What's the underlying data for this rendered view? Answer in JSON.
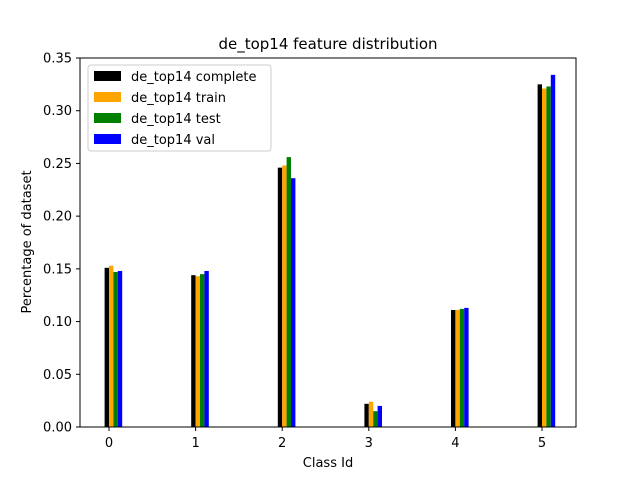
{
  "chart_data": {
    "type": "bar",
    "title": "de_top14 feature distribution",
    "xlabel": "Class Id",
    "ylabel": "Percentage of dataset",
    "categories": [
      "0",
      "1",
      "2",
      "3",
      "4",
      "5"
    ],
    "ylim": [
      0,
      0.35
    ],
    "yticks": [
      "0.00",
      "0.05",
      "0.10",
      "0.15",
      "0.20",
      "0.25",
      "0.30",
      "0.35"
    ],
    "grid": false,
    "legend_position": "top-left",
    "series": [
      {
        "name": "de_top14 complete",
        "color": "#000000",
        "values": [
          0.151,
          0.144,
          0.246,
          0.022,
          0.111,
          0.325
        ]
      },
      {
        "name": "de_top14 train",
        "color": "#ffa500",
        "values": [
          0.153,
          0.143,
          0.248,
          0.024,
          0.111,
          0.321
        ]
      },
      {
        "name": "de_top14 test",
        "color": "#008000",
        "values": [
          0.147,
          0.145,
          0.256,
          0.015,
          0.112,
          0.323
        ]
      },
      {
        "name": "de_top14 val",
        "color": "#0000ff",
        "values": [
          0.148,
          0.148,
          0.236,
          0.02,
          0.113,
          0.334
        ]
      }
    ]
  }
}
